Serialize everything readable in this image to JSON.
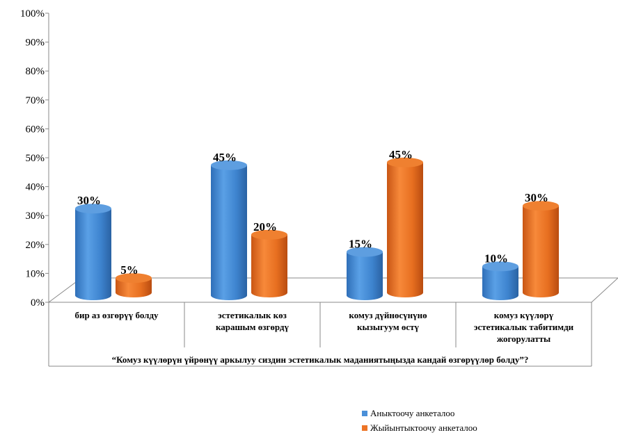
{
  "chart_data": {
    "type": "bar",
    "title": "",
    "xlabel": "“Комуз күүлөрүн үйрөнүү аркылуу сиздин эстетикалык маданиятыңызда кандай өзгөрүүлөр болду”?",
    "ylabel": "",
    "ylim": [
      0,
      100
    ],
    "yticks": [
      "0%",
      "10%",
      "20%",
      "30%",
      "40%",
      "50%",
      "60%",
      "70%",
      "80%",
      "90%",
      "100%"
    ],
    "categories": [
      [
        "бир аз өзгөрүү болду"
      ],
      [
        "эстетикалык көз",
        "карашым өзгөрдү"
      ],
      [
        "комуз дүйнөсүнүнө",
        "кызыгуум өстү"
      ],
      [
        "комуз күүлөрү",
        "эстетикалык табитимди",
        "жогорулатты"
      ]
    ],
    "series": [
      {
        "name": "Аныктоочу анкеталоо",
        "values": [
          30,
          45,
          15,
          10
        ],
        "labels": [
          "30%",
          "45%",
          "15%",
          "10%"
        ],
        "color": "#4a8fd8"
      },
      {
        "name": "Жыйынтыктоочу анкеталоо",
        "values": [
          5,
          20,
          45,
          30
        ],
        "labels": [
          "5%",
          "20%",
          "45%",
          "30%"
        ],
        "color": "#ed7426"
      }
    ],
    "grid": false,
    "legend_position": "bottom-right"
  }
}
